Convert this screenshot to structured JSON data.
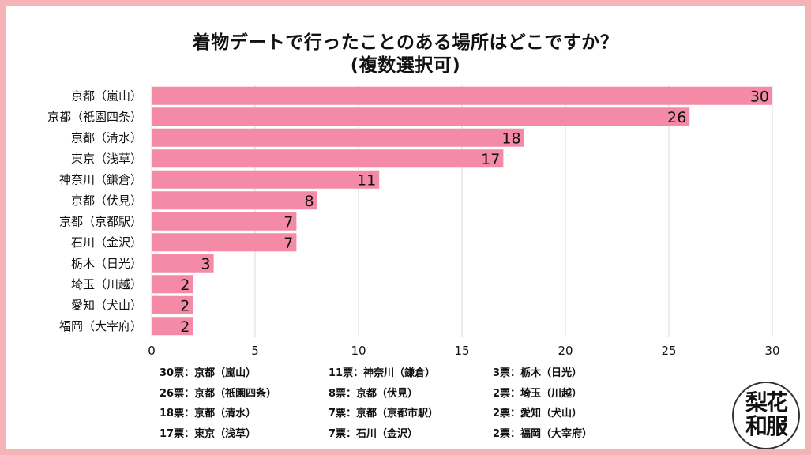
{
  "title_line1": "着物デートで行ったことのある場所はどこですか？",
  "title_line2": "(複数選択可)",
  "chart_data": {
    "type": "bar",
    "orientation": "horizontal",
    "title": "着物デートで行ったことのある場所はどこですか？ (複数選択可)",
    "categories": [
      "京都（嵐山）",
      "京都（祇園四条）",
      "京都（清水）",
      "東京（浅草）",
      "神奈川（鎌倉）",
      "京都（伏見）",
      "京都（京都駅）",
      "石川（金沢）",
      "栃木（日光）",
      "埼玉（川越）",
      "愛知（犬山）",
      "福岡（大宰府）"
    ],
    "values": [
      30,
      26,
      18,
      17,
      11,
      8,
      7,
      7,
      3,
      2,
      2,
      2
    ],
    "xlim": [
      0,
      30
    ],
    "xticks": [
      0,
      5,
      10,
      15,
      20,
      25,
      30
    ],
    "grid": true,
    "bar_color": "#f48aa6",
    "grid_color": "#d9d9d9"
  },
  "legend": {
    "col1": [
      "30票：京都（嵐山）",
      "26票：京都（祇園四条）",
      "18票：京都（清水）",
      "17票：東京（浅草）"
    ],
    "col2": [
      "11票：神奈川（鎌倉）",
      "8票：京都（伏見）",
      "7票：京都（京都市駅）",
      "7票：石川（金沢）"
    ],
    "col3": [
      "3票：栃木（日光）",
      "2票：埼玉（川越）",
      "2票：愛知（犬山）",
      "2票：福岡（大宰府）"
    ]
  },
  "logo": {
    "line1": "梨花",
    "line2": "和服"
  },
  "colors": {
    "border": "#f6b3b6",
    "background": "#ffffff",
    "bar": "#f48aa6"
  }
}
